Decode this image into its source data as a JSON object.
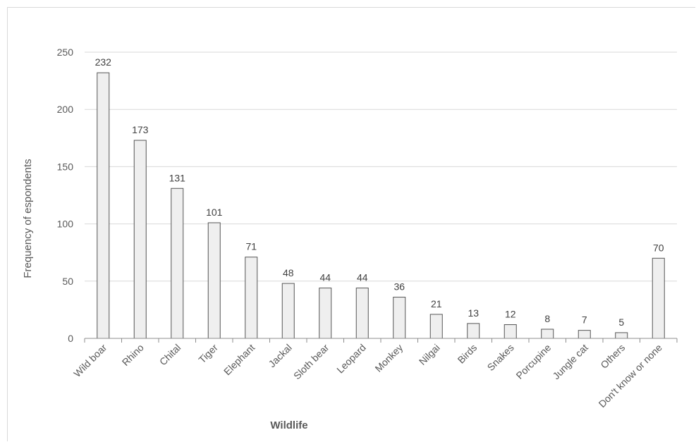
{
  "chart_data": {
    "type": "bar",
    "categories": [
      "Wild boar",
      "Rhino",
      "Chital",
      "Tiger",
      "Elephant",
      "Jackal",
      "Sloth bear",
      "Leopard",
      "Monkey",
      "Nilgai",
      "Birds",
      "Snakes",
      "Porcupine",
      "Jungle cat",
      "Others",
      "Don't know or none"
    ],
    "values": [
      232,
      173,
      131,
      101,
      71,
      48,
      44,
      44,
      36,
      21,
      13,
      12,
      8,
      7,
      5,
      70
    ],
    "xlabel": "Wildlife",
    "ylabel": "Frequency of espondents",
    "ylim": [
      0,
      250
    ],
    "yticks": [
      0,
      50,
      100,
      150,
      200,
      250
    ],
    "grid": true,
    "legend": "none",
    "colors": {
      "bar_fill": "#efefef",
      "bar_stroke": "#555555",
      "grid": "#d9d9d9",
      "axis": "#8c8c8c"
    }
  }
}
